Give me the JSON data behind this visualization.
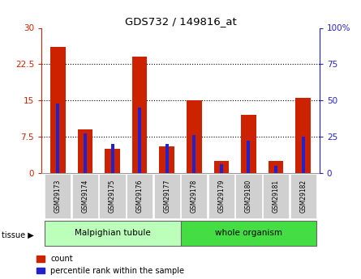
{
  "title": "GDS732 / 149816_at",
  "samples": [
    "GSM29173",
    "GSM29174",
    "GSM29175",
    "GSM29176",
    "GSM29177",
    "GSM29178",
    "GSM29179",
    "GSM29180",
    "GSM29181",
    "GSM29182"
  ],
  "counts": [
    26.0,
    9.0,
    5.0,
    24.0,
    5.5,
    15.0,
    2.5,
    12.0,
    2.5,
    15.5
  ],
  "percentiles": [
    48,
    27,
    20,
    45,
    20,
    26,
    6,
    22,
    5,
    25
  ],
  "count_color": "#cc2200",
  "percentile_color": "#2222cc",
  "left_ylim": [
    0,
    30
  ],
  "right_ylim": [
    0,
    100
  ],
  "left_yticks": [
    0,
    7.5,
    15,
    22.5,
    30
  ],
  "right_yticks": [
    0,
    25,
    50,
    75,
    100
  ],
  "right_yticklabels": [
    "0",
    "25",
    "50",
    "75",
    "100%"
  ],
  "tissue_groups": [
    {
      "label": "Malpighian tubule",
      "start": 0,
      "end": 5,
      "color": "#bbffbb"
    },
    {
      "label": "whole organism",
      "start": 5,
      "end": 10,
      "color": "#44dd44"
    }
  ],
  "tissue_label": "tissue",
  "legend_count": "count",
  "legend_pct": "percentile rank within the sample",
  "background_color": "#ffffff"
}
